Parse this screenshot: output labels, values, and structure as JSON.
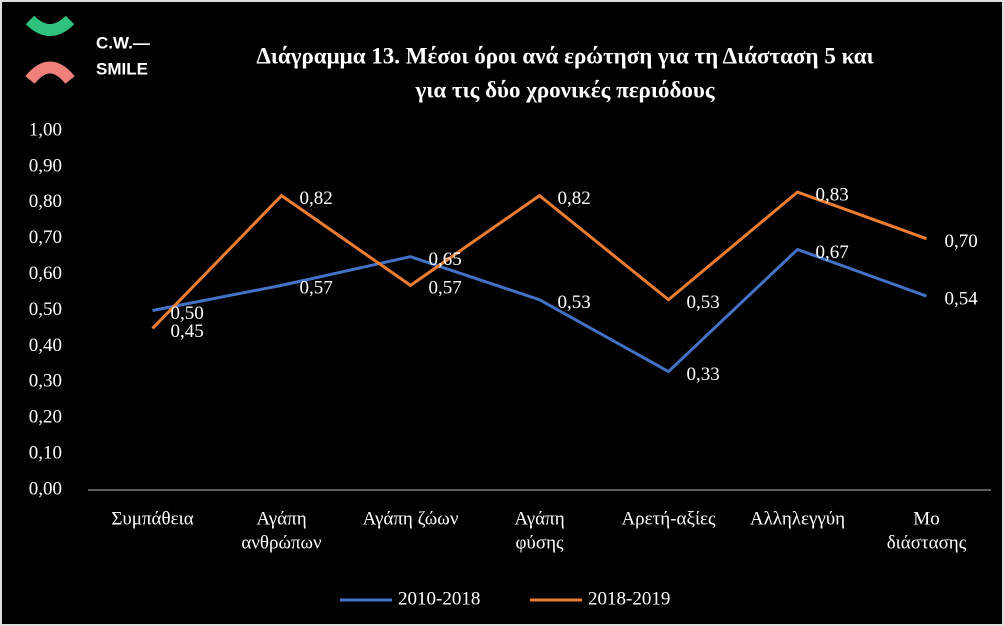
{
  "logo": [
    "C.W.—",
    "SMILE"
  ],
  "chart_data": {
    "type": "line",
    "title": [
      "Διάγραμμα 13. Μέσοι όροι ανά ερώτηση για τη Διάσταση 5 και",
      "για τις  δύο χρονικές περιόδους"
    ],
    "categories": [
      [
        "Συμπάθεια"
      ],
      [
        "Αγάπη",
        "ανθρώπων"
      ],
      [
        "Αγάπη ζώων"
      ],
      [
        "Αγάπη",
        "φύσης"
      ],
      [
        "Αρετή-αξίες"
      ],
      [
        "Αλληλεγγύη"
      ],
      [
        "Μο",
        "διάστασης"
      ]
    ],
    "series": [
      {
        "name": "2010-2018",
        "color": "#4472c4",
        "values": [
          0.5,
          0.57,
          0.65,
          0.53,
          0.33,
          0.67,
          0.54
        ],
        "value_labels": [
          "0,50",
          "0,57",
          "0,65",
          "0,53",
          "0,33",
          "0,67",
          "0,54"
        ]
      },
      {
        "name": "2018-2019",
        "color": "#ed7d31",
        "values": [
          0.45,
          0.82,
          0.57,
          0.82,
          0.53,
          0.83,
          0.7
        ],
        "value_labels": [
          "0,45",
          "0,82",
          "0,57",
          "0,82",
          "0,53",
          "0,83",
          "0,70"
        ]
      }
    ],
    "ylim": [
      0,
      1
    ],
    "yticks": [
      {
        "value": 0,
        "label": "0,00"
      },
      {
        "value": 0.1,
        "label": "0,10"
      },
      {
        "value": 0.2,
        "label": "0,20"
      },
      {
        "value": 0.3,
        "label": "0,30"
      },
      {
        "value": 0.4,
        "label": "0,40"
      },
      {
        "value": 0.5,
        "label": "0,50"
      },
      {
        "value": 0.6,
        "label": "0,60"
      },
      {
        "value": 0.7,
        "label": "0,70"
      },
      {
        "value": 0.8,
        "label": "0,80"
      },
      {
        "value": 0.9,
        "label": "0,90"
      },
      {
        "value": 1,
        "label": "1,00"
      }
    ],
    "grid": false,
    "legend": "bottom"
  }
}
